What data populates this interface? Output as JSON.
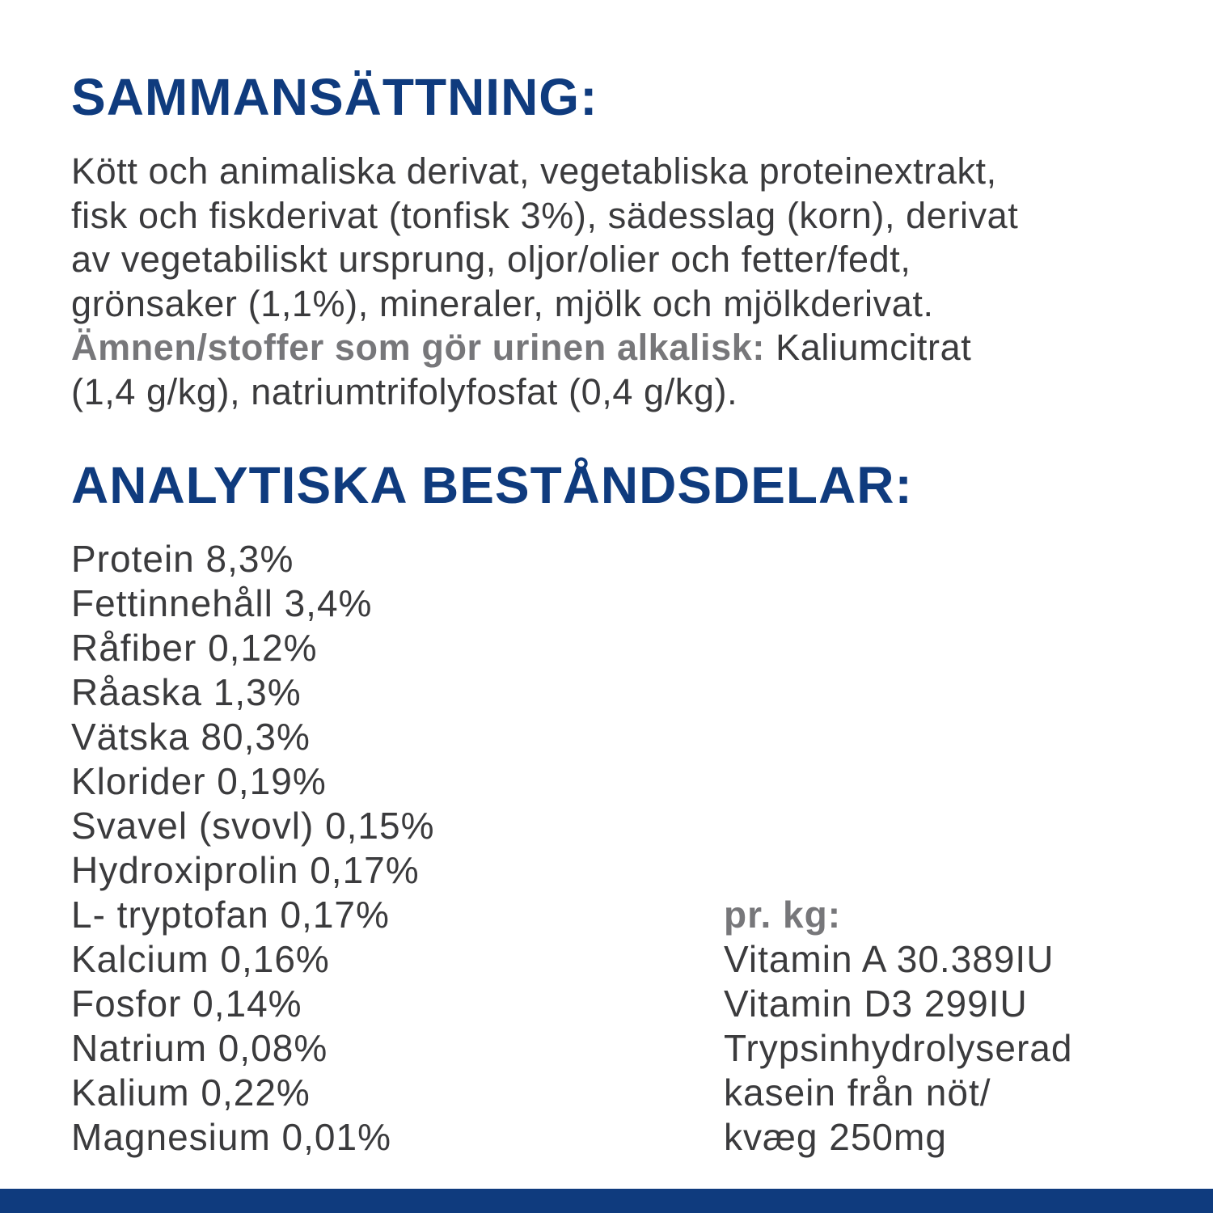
{
  "composition": {
    "heading": "SAMMANSÄTTNING:",
    "lines": [
      "Kött och animaliska derivat, vegetabliska proteinextrakt,",
      "fisk och fiskderivat (tonfisk 3%), sädesslag (korn), derivat",
      "av vegetabiliskt ursprung, oljor/olier och fetter/fedt,",
      "grönsaker (1,1%), mineraler, mjölk och mjölkderivat."
    ],
    "alkaline_label": "Ämnen/stoffer som gör urinen alkalisk:",
    "alkaline_text_1": " Kaliumcitrat",
    "alkaline_text_2": "(1,4 g/kg), natriumtrifolyfosfat (0,4 g/kg)."
  },
  "analytical": {
    "heading": "ANALYTISKA BESTÅNDSDELAR:",
    "items": [
      "Protein 8,3%",
      "Fettinnehåll 3,4%",
      "Råfiber 0,12%",
      "Råaska 1,3%",
      "Vätska 80,3%",
      "Klorider 0,19%",
      "Svavel (svovl) 0,15%",
      "Hydroxiprolin 0,17%",
      "L- tryptofan 0,17%",
      "Kalcium 0,16%",
      "Fosfor 0,14%",
      "Natrium 0,08%",
      "Kalium 0,22%",
      "Magnesium 0,01%"
    ],
    "per_kg_label": "pr. kg:",
    "per_kg_items": [
      "Vitamin A 30.389IU",
      "Vitamin D3 299IU",
      "Trypsinhydrolyserad",
      "kasein från nöt/",
      "kvæg 250mg"
    ]
  },
  "colors": {
    "heading": "#0f3b7e",
    "text": "#3b3b3d",
    "bold_label": "#77777a",
    "footer_bar": "#0f3b7e"
  }
}
